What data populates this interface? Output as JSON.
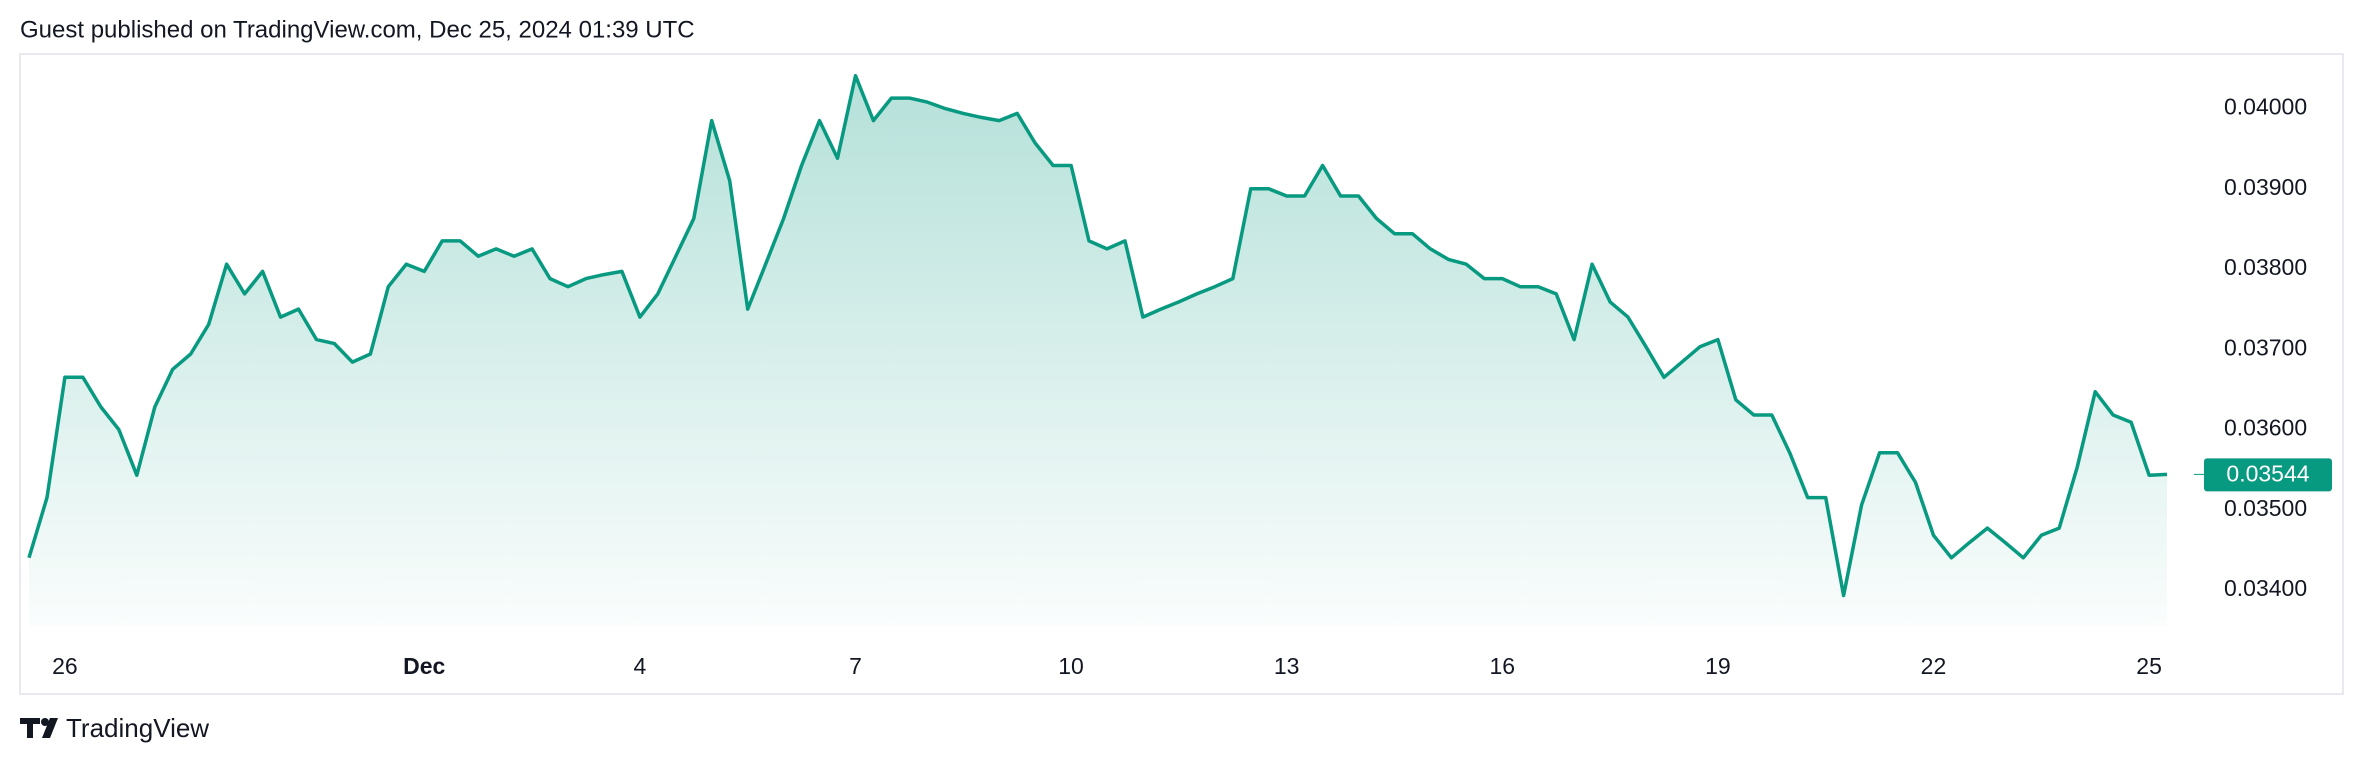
{
  "header": "Guest published on TradingView.com, Dec 25, 2024 01:39 UTC",
  "footer": "TradingView",
  "chart_data": {
    "type": "area",
    "color": "#089981",
    "values": [
      0.0344,
      0.03515,
      0.03665,
      0.03665,
      0.03628,
      0.036,
      0.03543,
      0.03628,
      0.03675,
      0.03694,
      0.03731,
      0.03806,
      0.03769,
      0.03797,
      0.0374,
      0.0375,
      0.03712,
      0.03707,
      0.03684,
      0.03694,
      0.03778,
      0.03806,
      0.03797,
      0.03835,
      0.03835,
      0.03816,
      0.03825,
      0.03816,
      0.03825,
      0.03788,
      0.03778,
      0.03788,
      0.03793,
      0.03797,
      0.0374,
      0.03769,
      0.03816,
      0.03863,
      0.03985,
      0.0391,
      0.0375,
      0.03806,
      0.03863,
      0.03929,
      0.03985,
      0.03938,
      0.04041,
      0.03985,
      0.04013,
      0.04013,
      0.04008,
      0.04,
      0.03994,
      0.03989,
      0.03985,
      0.03994,
      0.03957,
      0.03929,
      0.03929,
      0.03835,
      0.03825,
      0.03835,
      0.0374,
      0.0375,
      0.03759,
      0.03769,
      0.03778,
      0.03788,
      0.039,
      0.039,
      0.03891,
      0.03891,
      0.03929,
      0.03891,
      0.03891,
      0.03863,
      0.03844,
      0.03844,
      0.03825,
      0.03812,
      0.03806,
      0.03788,
      0.03788,
      0.03778,
      0.03778,
      0.03769,
      0.03712,
      0.03806,
      0.03759,
      0.0374,
      0.03703,
      0.03665,
      0.03684,
      0.03703,
      0.03712,
      0.03637,
      0.03618,
      0.03618,
      0.03571,
      0.03515,
      0.03515,
      0.03393,
      0.03506,
      0.03571,
      0.03571,
      0.03534,
      0.03468,
      0.0344,
      0.03459,
      0.03477,
      0.03459,
      0.0344,
      0.03468,
      0.03477,
      0.03553,
      0.03647,
      0.03618,
      0.03609,
      0.03543,
      0.03544
    ],
    "xlim": [
      -0.5,
      120.5
    ],
    "xticks": [
      {
        "value": 2,
        "label": "26"
      },
      {
        "value": 22,
        "label": "Dec"
      },
      {
        "value": 34,
        "label": "4"
      },
      {
        "value": 46,
        "label": "7"
      },
      {
        "value": 58,
        "label": "10"
      },
      {
        "value": 70,
        "label": "13"
      },
      {
        "value": 82,
        "label": "16"
      },
      {
        "value": 94,
        "label": "19"
      },
      {
        "value": 106,
        "label": "22"
      },
      {
        "value": 118,
        "label": "25"
      }
    ],
    "ylim": [
      0.03355,
      0.04068
    ],
    "yticks": [
      {
        "value": 0.034,
        "label": "0.03400"
      },
      {
        "value": 0.035,
        "label": "0.03500"
      },
      {
        "value": 0.036,
        "label": "0.03600"
      },
      {
        "value": 0.037,
        "label": "0.03700"
      },
      {
        "value": 0.038,
        "label": "0.03800"
      },
      {
        "value": 0.039,
        "label": "0.03900"
      },
      {
        "value": 0.04,
        "label": "0.04000"
      }
    ],
    "last_value": {
      "value": 0.03544,
      "label": "0.03544"
    }
  }
}
